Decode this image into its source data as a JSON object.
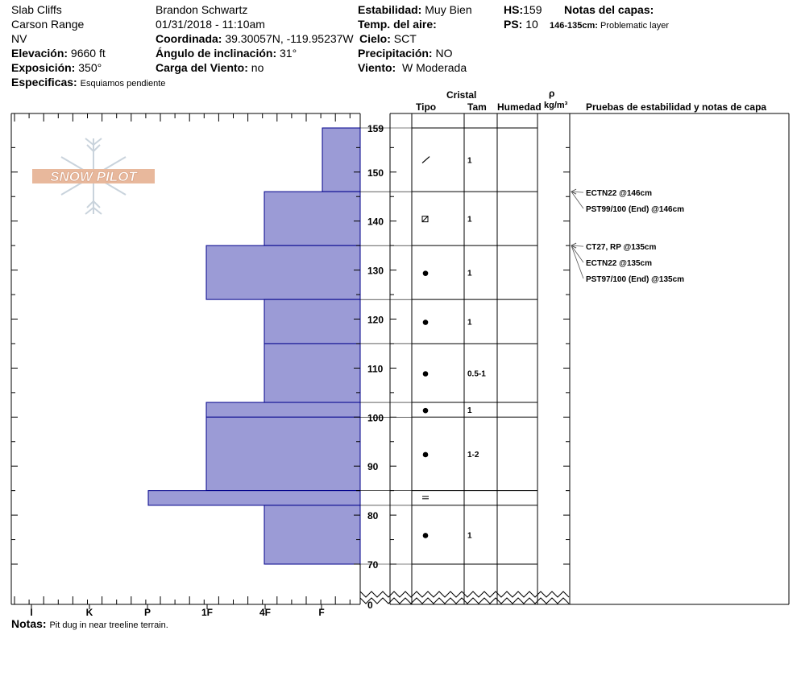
{
  "header": {
    "location": "Slab Cliffs",
    "range": "Carson Range",
    "state": "NV",
    "elevation_label": "Elevación:",
    "elevation_value": "9660 ft",
    "aspect_label": "Exposición:",
    "aspect_value": "350°",
    "specifics_label": "Especificas:",
    "specifics_value": "Esquiamos pendiente",
    "observer": "Brandon Schwartz",
    "datetime": "01/31/2018 - 11:10am",
    "coord_label": "Coordinada:",
    "coord_value": "39.30057N, -119.95237W",
    "slope_label": "Ángulo de inclinación:",
    "slope_value": "31°",
    "wind_load_label": "Carga del Viento:",
    "wind_load_value": "no",
    "stability_label": "Estabilidad:",
    "stability_value": "Muy Bien",
    "air_temp_label": "Temp. del aire:",
    "sky_label": "Cielo:",
    "sky_value": "SCT",
    "precip_label": "Precipitación:",
    "precip_value": "NO",
    "wind_label": "Viento:",
    "wind_value": "W Moderada",
    "hs_label": "HS:",
    "hs_value": "159",
    "ps_label": "PS:",
    "ps_value": "10",
    "layer_notes_label": "Notas del capas:",
    "layer_note_range": "146-135cm:",
    "layer_note_text": "Problematic layer"
  },
  "columns": {
    "crystal": "Cristal",
    "type": "Tipo",
    "size": "Tam",
    "moisture": "Humedad",
    "density_symbol": "ρ",
    "density_unit": "kg/m³",
    "tests_title": "Pruebas de estabilidad y notas de capa"
  },
  "notes_label": "Notas:",
  "notes_value": "Pit dug in near treeline terrain.",
  "logo_text": "SNOW PILOT",
  "colors": {
    "bar_fill": "#9b9bd6",
    "bar_stroke": "#00008b",
    "logo_fill": "#e8b89c"
  },
  "chart_data": {
    "type": "bar",
    "orientation": "horizontal",
    "title": "",
    "ylabel": "",
    "ylim": [
      0,
      159
    ],
    "y_ticks": [
      0,
      70,
      80,
      90,
      100,
      110,
      120,
      130,
      140,
      150,
      159
    ],
    "x_categories": [
      "I",
      "K",
      "P",
      "1F",
      "4F",
      "F"
    ],
    "hardness_profile": [
      {
        "bottom": 146,
        "top": 159,
        "hardness": "F"
      },
      {
        "bottom": 135,
        "top": 146,
        "hardness": "4F"
      },
      {
        "bottom": 124,
        "top": 135,
        "hardness": "1F"
      },
      {
        "bottom": 115,
        "top": 124,
        "hardness": "4F"
      },
      {
        "bottom": 103,
        "top": 115,
        "hardness": "4F"
      },
      {
        "bottom": 100,
        "top": 103,
        "hardness": "1F"
      },
      {
        "bottom": 85,
        "top": 100,
        "hardness": "1F"
      },
      {
        "bottom": 82,
        "top": 85,
        "hardness": "P"
      },
      {
        "bottom": 70,
        "top": 82,
        "hardness": "4F"
      }
    ],
    "layers": [
      {
        "bottom": 146,
        "top": 159,
        "grain": "decomposing",
        "size": "1"
      },
      {
        "bottom": 135,
        "top": 146,
        "grain": "faceted-rounded",
        "size": "1"
      },
      {
        "bottom": 124,
        "top": 135,
        "grain": "rounded",
        "size": "1"
      },
      {
        "bottom": 115,
        "top": 124,
        "grain": "rounded",
        "size": "1"
      },
      {
        "bottom": 103,
        "top": 115,
        "grain": "rounded",
        "size": "0.5-1"
      },
      {
        "bottom": 100,
        "top": 103,
        "grain": "rounded",
        "size": "1"
      },
      {
        "bottom": 85,
        "top": 100,
        "grain": "rounded",
        "size": "1-2"
      },
      {
        "bottom": 82,
        "top": 85,
        "grain": "crust",
        "size": ""
      },
      {
        "bottom": 70,
        "top": 82,
        "grain": "rounded",
        "size": "1"
      }
    ],
    "tests": [
      {
        "depth": 146,
        "text": "ECTN22 @146cm"
      },
      {
        "depth": 146,
        "text": "PST99/100 (End) @146cm"
      },
      {
        "depth": 135,
        "text": "CT27, RP @135cm"
      },
      {
        "depth": 135,
        "text": "ECTN22 @135cm"
      },
      {
        "depth": 135,
        "text": "PST97/100 (End) @135cm"
      }
    ]
  }
}
